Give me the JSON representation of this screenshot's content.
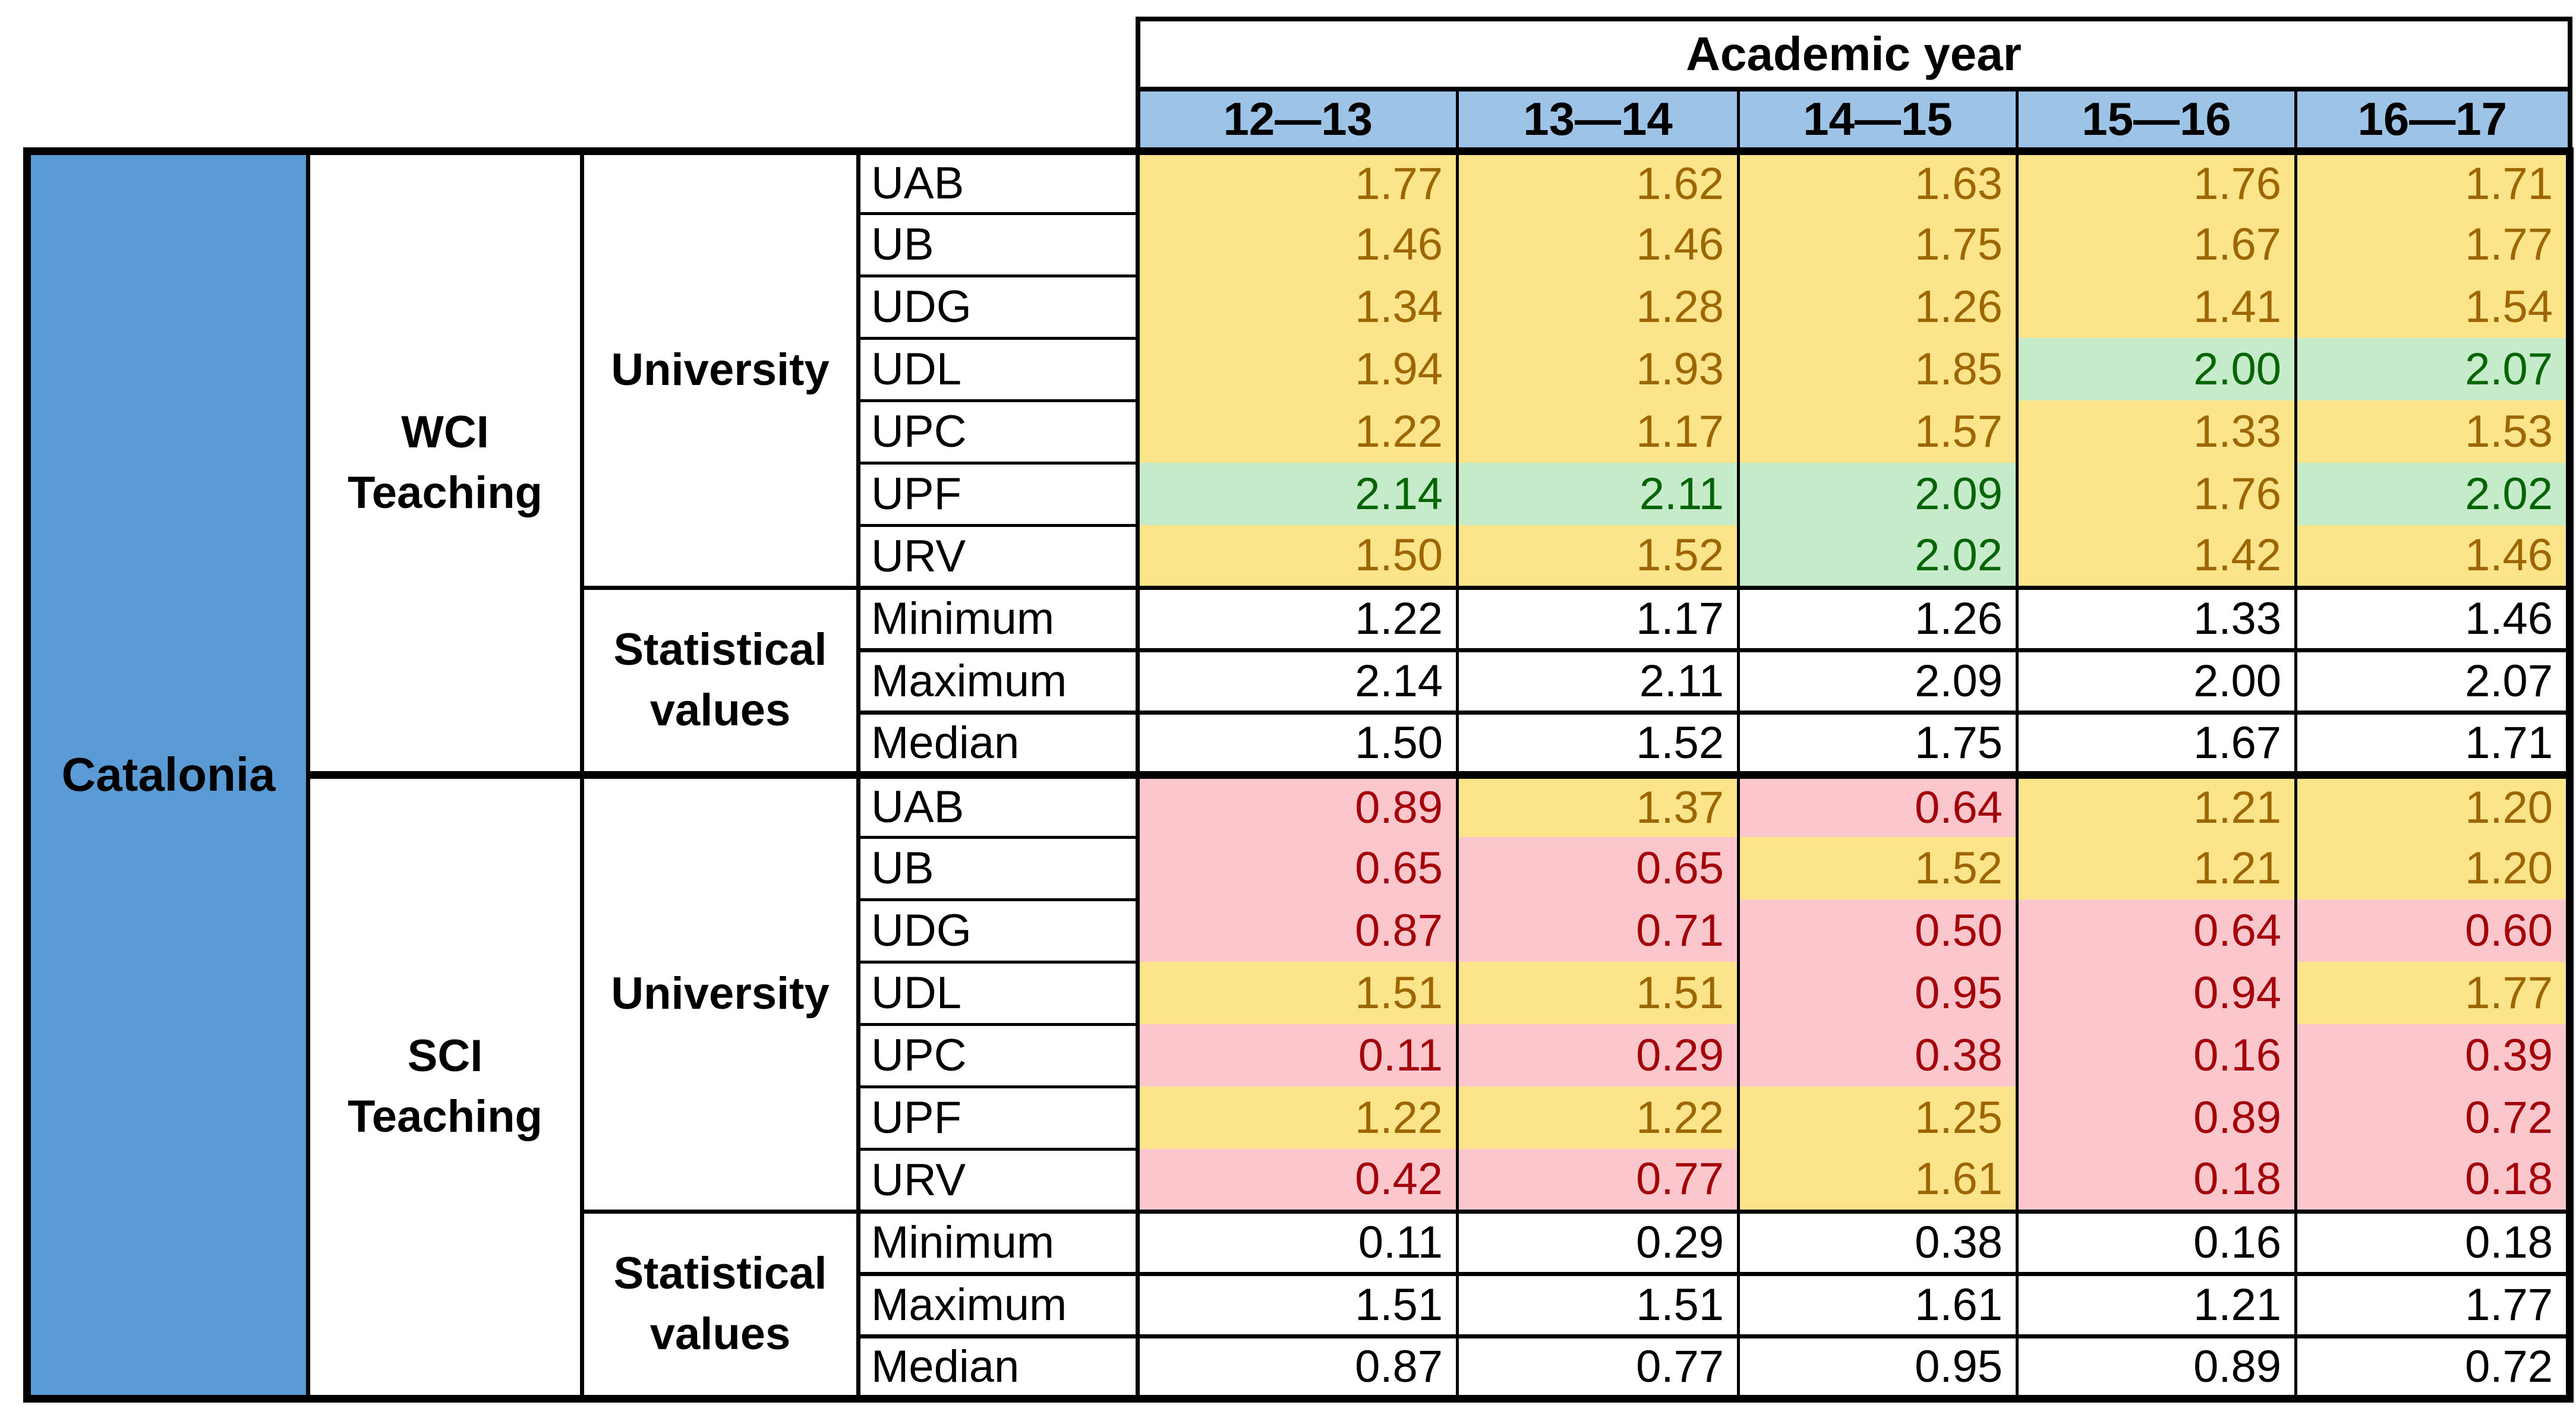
{
  "colors": {
    "region_blue": "#5B9BD5",
    "year_header_blue": "#9DC3E6",
    "neutral_bg": "#FBE48A",
    "neutral_text": "#9E6600",
    "good_bg": "#C6EBCB",
    "good_text": "#056505",
    "bad_bg": "#FBC7CD",
    "bad_text": "#A30009",
    "stat_bg": "#FFFFFF",
    "stat_text": "#000000",
    "border": "#000000"
  },
  "table": {
    "region_label": "Catalonia",
    "year_header": "Academic year",
    "years": [
      "12—13",
      "13—14",
      "14—15",
      "15—16",
      "16—17"
    ],
    "value_rules": {
      "bad_below": 1.0,
      "good_at_or_above": 2.0
    },
    "sections": [
      {
        "group_label": "WCI\nTeaching",
        "university_label": "University",
        "stats_label": "Statistical\nvalues",
        "universities": [
          {
            "name": "UAB",
            "values": [
              "1.77",
              "1.62",
              "1.63",
              "1.76",
              "1.71"
            ]
          },
          {
            "name": "UB",
            "values": [
              "1.46",
              "1.46",
              "1.75",
              "1.67",
              "1.77"
            ]
          },
          {
            "name": "UDG",
            "values": [
              "1.34",
              "1.28",
              "1.26",
              "1.41",
              "1.54"
            ]
          },
          {
            "name": "UDL",
            "values": [
              "1.94",
              "1.93",
              "1.85",
              "2.00",
              "2.07"
            ]
          },
          {
            "name": "UPC",
            "values": [
              "1.22",
              "1.17",
              "1.57",
              "1.33",
              "1.53"
            ]
          },
          {
            "name": "UPF",
            "values": [
              "2.14",
              "2.11",
              "2.09",
              "1.76",
              "2.02"
            ]
          },
          {
            "name": "URV",
            "values": [
              "1.50",
              "1.52",
              "2.02",
              "1.42",
              "1.46"
            ]
          }
        ],
        "stats": [
          {
            "name": "Minimum",
            "values": [
              "1.22",
              "1.17",
              "1.26",
              "1.33",
              "1.46"
            ]
          },
          {
            "name": "Maximum",
            "values": [
              "2.14",
              "2.11",
              "2.09",
              "2.00",
              "2.07"
            ]
          },
          {
            "name": "Median",
            "values": [
              "1.50",
              "1.52",
              "1.75",
              "1.67",
              "1.71"
            ]
          }
        ]
      },
      {
        "group_label": "SCI\nTeaching",
        "university_label": "University",
        "stats_label": "Statistical\nvalues",
        "universities": [
          {
            "name": "UAB",
            "values": [
              "0.89",
              "1.37",
              "0.64",
              "1.21",
              "1.20"
            ]
          },
          {
            "name": "UB",
            "values": [
              "0.65",
              "0.65",
              "1.52",
              "1.21",
              "1.20"
            ]
          },
          {
            "name": "UDG",
            "values": [
              "0.87",
              "0.71",
              "0.50",
              "0.64",
              "0.60"
            ]
          },
          {
            "name": "UDL",
            "values": [
              "1.51",
              "1.51",
              "0.95",
              "0.94",
              "1.77"
            ]
          },
          {
            "name": "UPC",
            "values": [
              "0.11",
              "0.29",
              "0.38",
              "0.16",
              "0.39"
            ]
          },
          {
            "name": "UPF",
            "values": [
              "1.22",
              "1.22",
              "1.25",
              "0.89",
              "0.72"
            ]
          },
          {
            "name": "URV",
            "values": [
              "0.42",
              "0.77",
              "1.61",
              "0.18",
              "0.18"
            ]
          }
        ],
        "stats": [
          {
            "name": "Minimum",
            "values": [
              "0.11",
              "0.29",
              "0.38",
              "0.16",
              "0.18"
            ]
          },
          {
            "name": "Maximum",
            "values": [
              "1.51",
              "1.51",
              "1.61",
              "1.21",
              "1.77"
            ]
          },
          {
            "name": "Median",
            "values": [
              "0.87",
              "0.77",
              "0.95",
              "0.89",
              "0.72"
            ]
          }
        ]
      }
    ]
  },
  "chart_data": {
    "type": "table",
    "title": "Academic year",
    "region": "Catalonia",
    "columns": [
      "12—13",
      "13—14",
      "14—15",
      "15—16",
      "16—17"
    ],
    "sections": [
      {
        "name": "WCI Teaching",
        "university_rows": {
          "UAB": [
            1.77,
            1.62,
            1.63,
            1.76,
            1.71
          ],
          "UB": [
            1.46,
            1.46,
            1.75,
            1.67,
            1.77
          ],
          "UDG": [
            1.34,
            1.28,
            1.26,
            1.41,
            1.54
          ],
          "UDL": [
            1.94,
            1.93,
            1.85,
            2.0,
            2.07
          ],
          "UPC": [
            1.22,
            1.17,
            1.57,
            1.33,
            1.53
          ],
          "UPF": [
            2.14,
            2.11,
            2.09,
            1.76,
            2.02
          ],
          "URV": [
            1.5,
            1.52,
            2.02,
            1.42,
            1.46
          ]
        },
        "statistical_rows": {
          "Minimum": [
            1.22,
            1.17,
            1.26,
            1.33,
            1.46
          ],
          "Maximum": [
            2.14,
            2.11,
            2.09,
            2.0,
            2.07
          ],
          "Median": [
            1.5,
            1.52,
            1.75,
            1.67,
            1.71
          ]
        }
      },
      {
        "name": "SCI Teaching",
        "university_rows": {
          "UAB": [
            0.89,
            1.37,
            0.64,
            1.21,
            1.2
          ],
          "UB": [
            0.65,
            0.65,
            1.52,
            1.21,
            1.2
          ],
          "UDG": [
            0.87,
            0.71,
            0.5,
            0.64,
            0.6
          ],
          "UDL": [
            1.51,
            1.51,
            0.95,
            0.94,
            1.77
          ],
          "UPC": [
            0.11,
            0.29,
            0.38,
            0.16,
            0.39
          ],
          "UPF": [
            1.22,
            1.22,
            1.25,
            0.89,
            0.72
          ],
          "URV": [
            0.42,
            0.77,
            1.61,
            0.18,
            0.18
          ]
        },
        "statistical_rows": {
          "Minimum": [
            0.11,
            0.29,
            0.38,
            0.16,
            0.18
          ],
          "Maximum": [
            1.51,
            1.51,
            1.61,
            1.21,
            1.77
          ],
          "Median": [
            0.87,
            0.77,
            0.95,
            0.89,
            0.72
          ]
        }
      }
    ],
    "cell_color_coding": "pink: value < 1.00, yellow: 1.00–1.99, green: >= 2.00; statistical rows uncolored",
    "legend_position": "none",
    "grid": true
  }
}
